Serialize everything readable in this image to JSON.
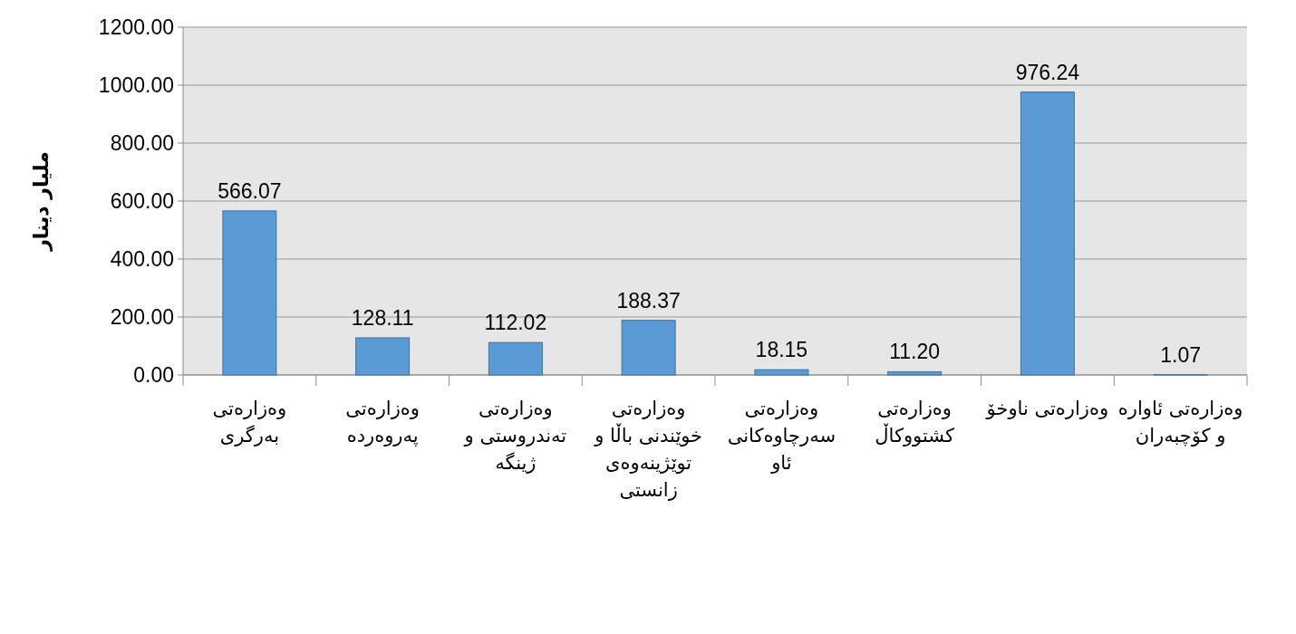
{
  "chart_data": {
    "type": "bar",
    "ylabel": "ملیار دینار",
    "categories": [
      "وەزارەتی بەرگری",
      "وەزارەتی پەروەردە",
      "وەزارەتی تەندروستی و ژینگە",
      "وەزارەتی خوێندنی باڵا و توێژینەوەی زانستی",
      "وەزارەتی سەرچاوەکانی ئاو",
      "وەزارەتی کشتووکاڵ",
      "وەزارەتی ناوخۆ",
      "وەزارەتی ئاوارە و کۆچبەران"
    ],
    "values": [
      566.07,
      128.11,
      112.02,
      188.37,
      18.15,
      11.2,
      976.24,
      1.07
    ],
    "value_labels": [
      "566.07",
      "128.11",
      "112.02",
      "188.37",
      "18.15",
      "11.20",
      "976.24",
      "1.07"
    ],
    "color": "#5b9bd5",
    "ylim": [
      0,
      1200
    ],
    "yticks": [
      {
        "value": 0,
        "label": "0.00"
      },
      {
        "value": 200,
        "label": "200.00"
      },
      {
        "value": 400,
        "label": "400.00"
      },
      {
        "value": 600,
        "label": "600.00"
      },
      {
        "value": 800,
        "label": "800.00"
      },
      {
        "value": 1000,
        "label": "1000.00"
      },
      {
        "value": 1200,
        "label": "1200.00"
      }
    ],
    "grid": "y"
  }
}
